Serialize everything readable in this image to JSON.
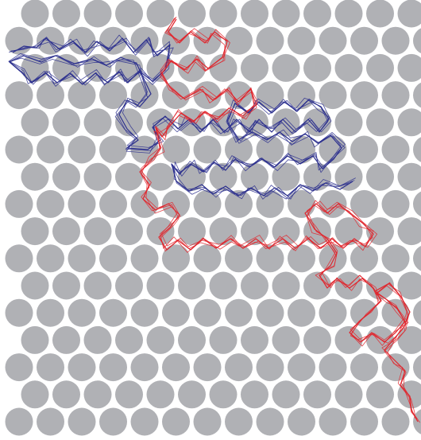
{
  "figure": {
    "background_color": "#ffffff",
    "obstacle_color": "#b0b1b5",
    "lattice": {
      "type": "hexagonal",
      "rows": 16,
      "columns": 14
    },
    "trajectories": [
      {
        "color": "#2b2f8e",
        "path": [
          [
            16,
            66
          ],
          [
            30,
            58
          ],
          [
            46,
            60
          ],
          [
            58,
            48
          ],
          [
            75,
            62
          ],
          [
            92,
            52
          ],
          [
            108,
            66
          ],
          [
            122,
            52
          ],
          [
            138,
            64
          ],
          [
            154,
            48
          ],
          [
            168,
            66
          ],
          [
            184,
            50
          ],
          [
            198,
            70
          ],
          [
            214,
            56
          ],
          [
            208,
            88
          ],
          [
            192,
            102
          ],
          [
            176,
            90
          ],
          [
            160,
            104
          ],
          [
            150,
            90
          ],
          [
            136,
            104
          ],
          [
            120,
            92
          ],
          [
            104,
            106
          ],
          [
            88,
            92
          ],
          [
            72,
            104
          ],
          [
            58,
            92
          ],
          [
            40,
            104
          ],
          [
            26,
            90
          ],
          [
            12,
            78
          ],
          [
            30,
            70
          ],
          [
            52,
            78
          ],
          [
            70,
            70
          ],
          [
            94,
            80
          ],
          [
            116,
            74
          ],
          [
            134,
            82
          ],
          [
            152,
            72
          ],
          [
            172,
            80
          ],
          [
            190,
            118
          ],
          [
            176,
            134
          ],
          [
            160,
            126
          ],
          [
            150,
            144
          ],
          [
            160,
            162
          ],
          [
            174,
            176
          ],
          [
            160,
            186
          ],
          [
            186,
            188
          ],
          [
            202,
            176
          ],
          [
            192,
            160
          ],
          [
            208,
            146
          ],
          [
            224,
            162
          ],
          [
            238,
            150
          ],
          [
            252,
            166
          ],
          [
            268,
            150
          ],
          [
            282,
            166
          ],
          [
            298,
            150
          ],
          [
            314,
            166
          ],
          [
            326,
            150
          ],
          [
            342,
            166
          ],
          [
            356,
            150
          ],
          [
            372,
            166
          ],
          [
            388,
            150
          ],
          [
            402,
            166
          ],
          [
            414,
            150
          ],
          [
            404,
            134
          ],
          [
            388,
            126
          ],
          [
            374,
            140
          ],
          [
            358,
            128
          ],
          [
            342,
            142
          ],
          [
            326,
            128
          ],
          [
            312,
            142
          ],
          [
            296,
            130
          ],
          [
            286,
            152
          ],
          [
            300,
            176
          ],
          [
            318,
            166
          ],
          [
            336,
            176
          ],
          [
            352,
            166
          ],
          [
            368,
            178
          ],
          [
            384,
            168
          ],
          [
            400,
            180
          ],
          [
            416,
            170
          ],
          [
            430,
            186
          ],
          [
            420,
            200
          ],
          [
            406,
            212
          ],
          [
            394,
            196
          ],
          [
            378,
            206
          ],
          [
            362,
            196
          ],
          [
            346,
            210
          ],
          [
            330,
            200
          ],
          [
            314,
            210
          ],
          [
            296,
            200
          ],
          [
            284,
            214
          ],
          [
            270,
            204
          ],
          [
            256,
            216
          ],
          [
            240,
            206
          ],
          [
            226,
            218
          ],
          [
            216,
            206
          ],
          [
            222,
            228
          ],
          [
            238,
            240
          ],
          [
            254,
            232
          ],
          [
            268,
            244
          ],
          [
            284,
            234
          ],
          [
            300,
            246
          ],
          [
            316,
            236
          ],
          [
            332,
            246
          ],
          [
            346,
            236
          ],
          [
            362,
            246
          ],
          [
            378,
            232
          ],
          [
            394,
            240
          ],
          [
            410,
            230
          ],
          [
            428,
            238
          ],
          [
            444,
            228
          ]
        ]
      },
      {
        "color": "#e0262d",
        "path": [
          [
            222,
            24
          ],
          [
            212,
            40
          ],
          [
            226,
            54
          ],
          [
            240,
            40
          ],
          [
            258,
            54
          ],
          [
            270,
            40
          ],
          [
            286,
            52
          ],
          [
            280,
            72
          ],
          [
            262,
            86
          ],
          [
            248,
            74
          ],
          [
            232,
            88
          ],
          [
            216,
            76
          ],
          [
            204,
            92
          ],
          [
            214,
            110
          ],
          [
            232,
            124
          ],
          [
            252,
            112
          ],
          [
            268,
            126
          ],
          [
            286,
            112
          ],
          [
            300,
            128
          ],
          [
            316,
            112
          ],
          [
            320,
            132
          ],
          [
            306,
            146
          ],
          [
            288,
            136
          ],
          [
            274,
            150
          ],
          [
            258,
            140
          ],
          [
            244,
            152
          ],
          [
            228,
            142
          ],
          [
            214,
            158
          ],
          [
            204,
            172
          ],
          [
            196,
            160
          ],
          [
            202,
            186
          ],
          [
            190,
            202
          ],
          [
            176,
            216
          ],
          [
            188,
            232
          ],
          [
            180,
            250
          ],
          [
            196,
            264
          ],
          [
            212,
            256
          ],
          [
            226,
            270
          ],
          [
            214,
            286
          ],
          [
            200,
            298
          ],
          [
            210,
            314
          ],
          [
            224,
            302
          ],
          [
            240,
            314
          ],
          [
            256,
            300
          ],
          [
            272,
            312
          ],
          [
            290,
            300
          ],
          [
            306,
            312
          ],
          [
            322,
            300
          ],
          [
            338,
            312
          ],
          [
            356,
            300
          ],
          [
            372,
            312
          ],
          [
            388,
            300
          ],
          [
            404,
            312
          ],
          [
            418,
            300
          ],
          [
            432,
            312
          ],
          [
            446,
            300
          ],
          [
            460,
            310
          ],
          [
            470,
            294
          ],
          [
            456,
            280
          ],
          [
            440,
            268
          ],
          [
            426,
            256
          ],
          [
            412,
            268
          ],
          [
            398,
            256
          ],
          [
            384,
            268
          ],
          [
            396,
            288
          ],
          [
            412,
            300
          ],
          [
            424,
            318
          ],
          [
            416,
            334
          ],
          [
            402,
            346
          ],
          [
            412,
            362
          ],
          [
            424,
            350
          ],
          [
            440,
            362
          ],
          [
            456,
            350
          ],
          [
            470,
            362
          ],
          [
            480,
            378
          ],
          [
            466,
            392
          ],
          [
            452,
            404
          ],
          [
            440,
            418
          ],
          [
            454,
            430
          ],
          [
            468,
            418
          ],
          [
            484,
            430
          ],
          [
            498,
            418
          ],
          [
            510,
            404
          ],
          [
            500,
            388
          ],
          [
            486,
            376
          ],
          [
            472,
            366
          ],
          [
            490,
            356
          ],
          [
            504,
            372
          ],
          [
            516,
            392
          ],
          [
            508,
            412
          ],
          [
            496,
            426
          ],
          [
            484,
            440
          ],
          [
            498,
            454
          ],
          [
            510,
            466
          ],
          [
            504,
            484
          ],
          [
            516,
            498
          ],
          [
            518,
            516
          ],
          [
            526,
            530
          ]
        ]
      }
    ]
  }
}
